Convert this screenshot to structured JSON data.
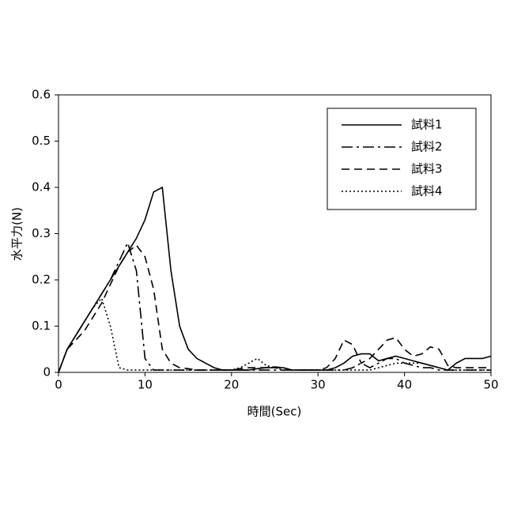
{
  "chart_data": {
    "type": "line",
    "x_label": "時間(Sec)",
    "y_label": "水平力(N)",
    "x": [
      0,
      1,
      2,
      3,
      4,
      5,
      6,
      7,
      8,
      9,
      10,
      11,
      12,
      13,
      14,
      15,
      16,
      17,
      18,
      19,
      20,
      21,
      22,
      23,
      24,
      25,
      26,
      27,
      28,
      29,
      30,
      31,
      32,
      33,
      34,
      35,
      36,
      37,
      38,
      39,
      40,
      41,
      42,
      43,
      44,
      45,
      46,
      47,
      48,
      49,
      50
    ],
    "xlim": [
      0,
      50
    ],
    "xticks": [
      0,
      10,
      20,
      30,
      40,
      50
    ],
    "ylim": [
      0,
      0.6
    ],
    "yticks": [
      0,
      0.1,
      0.2,
      0.3,
      0.4,
      0.5,
      0.6
    ],
    "legend": "upper right",
    "series": [
      {
        "name": "試料1",
        "color": "#000000",
        "dash": "solid",
        "values": [
          0,
          0.05,
          0.08,
          0.11,
          0.14,
          0.17,
          0.2,
          0.23,
          0.26,
          0.29,
          0.33,
          0.39,
          0.4,
          0.22,
          0.1,
          0.05,
          0.03,
          0.02,
          0.01,
          0.005,
          0.005,
          0.005,
          0.005,
          0.008,
          0.01,
          0.01,
          0.01,
          0.005,
          0.005,
          0.005,
          0.005,
          0.005,
          0.01,
          0.02,
          0.035,
          0.04,
          0.04,
          0.025,
          0.03,
          0.035,
          0.03,
          0.025,
          0.02,
          0.015,
          0.01,
          0.005,
          0.02,
          0.03,
          0.03,
          0.03,
          0.035
        ]
      },
      {
        "name": "試料2",
        "color": "#000000",
        "dash": "dashdot",
        "values": [
          0,
          0.05,
          0.08,
          0.11,
          0.14,
          0.17,
          0.2,
          0.24,
          0.28,
          0.22,
          0.03,
          0.005,
          0.005,
          0.005,
          0.005,
          0.005,
          0.005,
          0.005,
          0.005,
          0.005,
          0.005,
          0.005,
          0.005,
          0.005,
          0.005,
          0.005,
          0.005,
          0.005,
          0.005,
          0.005,
          0.005,
          0.005,
          0.005,
          0.005,
          0.01,
          0.02,
          0.01,
          0.02,
          0.03,
          0.03,
          0.02,
          0.015,
          0.01,
          0.01,
          0.005,
          0.005,
          0.005,
          0.005,
          0.005,
          0.005,
          0.005
        ]
      },
      {
        "name": "試料3",
        "color": "#000000",
        "dash": "dash",
        "values": [
          0,
          0.05,
          0.07,
          0.09,
          0.12,
          0.15,
          0.19,
          0.23,
          0.26,
          0.275,
          0.25,
          0.18,
          0.05,
          0.02,
          0.01,
          0.008,
          0.005,
          0.005,
          0.005,
          0.005,
          0.005,
          0.008,
          0.01,
          0.01,
          0.01,
          0.012,
          0.01,
          0.005,
          0.005,
          0.005,
          0.005,
          0.01,
          0.03,
          0.07,
          0.06,
          0.02,
          0.03,
          0.05,
          0.07,
          0.075,
          0.05,
          0.035,
          0.04,
          0.055,
          0.05,
          0.015,
          0.01,
          0.01,
          0.01,
          0.01,
          0.01
        ]
      },
      {
        "name": "試料4",
        "color": "#000000",
        "dash": "dot",
        "values": [
          0,
          0.05,
          0.08,
          0.11,
          0.14,
          0.16,
          0.1,
          0.01,
          0.005,
          0.005,
          0.005,
          0.005,
          0.005,
          0.005,
          0.005,
          0.005,
          0.005,
          0.005,
          0.005,
          0.005,
          0.005,
          0.01,
          0.02,
          0.03,
          0.015,
          0.01,
          0.005,
          0.005,
          0.005,
          0.005,
          0.005,
          0.005,
          0.005,
          0.005,
          0.005,
          0.005,
          0.005,
          0.01,
          0.015,
          0.02,
          0.02,
          0.02,
          0.02,
          0.015,
          0.01,
          0.005,
          0.005,
          0.005,
          0.005,
          0.005,
          0.005
        ]
      }
    ]
  }
}
